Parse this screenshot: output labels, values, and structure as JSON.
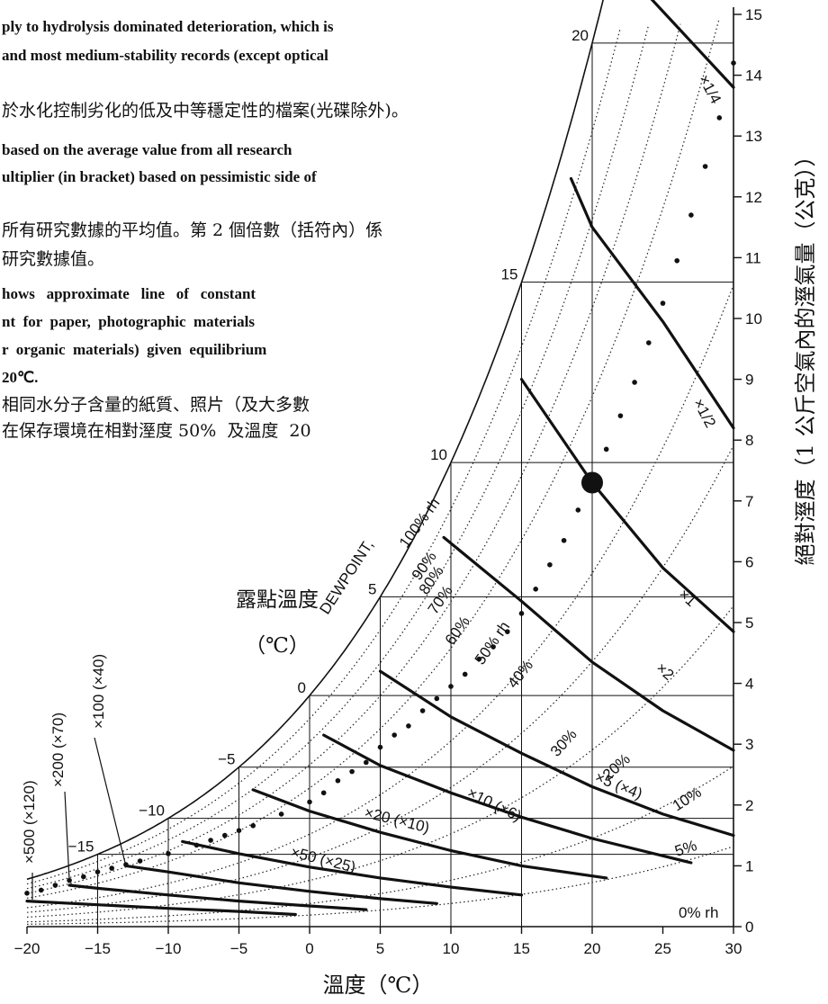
{
  "text_block": {
    "lines": [
      "ply to hydrolysis dominated deterioration, which is",
      " and most medium-stability records (except optical",
      "於水化控制劣化的低及中等穩定性的檔案(光碟除外)。",
      "based on the average value from all research",
      "ultiplier (in bracket) based on pessimistic side of",
      "所有研究數據的平均值。第 2 個倍數（括符內）係",
      "研究數據值。",
      "hows   approximate   line   of   constant",
      "nt  for  paper,  photographic  materials",
      "r  organic  materials)  given  equilibrium",
      "20℃.",
      "相同水分子含量的紙質、照片（及大多數",
      "在保存環境在相對溼度 50%  及溫度  20"
    ]
  },
  "chart_data": {
    "type": "line",
    "title": "",
    "xlabel": "溫度（℃）",
    "ylabel": "絕對溼度（1 公斤空氣內的溼氣量（公克））",
    "dewpoint_label": "DEWPOINT,",
    "dewpoint_cn_label": "露點溫度",
    "dewpoint_cn_unit": "（℃）",
    "xlim": [
      -20,
      30
    ],
    "ylim": [
      0,
      15
    ],
    "x_ticks": [
      "−20",
      "−15",
      "−10",
      "−5",
      "0",
      "5",
      "10",
      "15",
      "20",
      "25",
      "30"
    ],
    "y_ticks": [
      "0",
      "1",
      "2",
      "3",
      "4",
      "5",
      "6",
      "7",
      "8",
      "9",
      "10",
      "11",
      "12",
      "13",
      "14",
      "15"
    ],
    "dewpoint_ticks": [
      "20",
      "15",
      "10",
      "5",
      "0",
      "−5",
      "−10",
      "−15"
    ],
    "dewpoint_values": [
      20,
      15,
      10,
      5,
      0,
      -5,
      -10,
      -15
    ],
    "rh_labels": [
      {
        "text": "100% rh",
        "rh": 100
      },
      {
        "text": "90%",
        "rh": 90
      },
      {
        "text": "80%",
        "rh": 80
      },
      {
        "text": "70%",
        "rh": 70
      },
      {
        "text": "60%",
        "rh": 60
      },
      {
        "text": "50% rh",
        "rh": 50
      },
      {
        "text": "40%",
        "rh": 40
      },
      {
        "text": "30%",
        "rh": 30
      },
      {
        "text": "20%",
        "rh": 20
      },
      {
        "text": "10%",
        "rh": 10
      },
      {
        "text": "5%",
        "rh": 5
      },
      {
        "text": "0% rh",
        "rh": 0
      }
    ],
    "rh_curves": [
      90,
      80,
      70,
      60,
      40,
      30,
      20,
      10,
      5
    ],
    "reference_point": {
      "x": 20,
      "y": 7.3
    },
    "dotted_points": [
      {
        "x": -20,
        "y": 0.55
      },
      {
        "x": -19,
        "y": 0.6
      },
      {
        "x": -18,
        "y": 0.68
      },
      {
        "x": -17,
        "y": 0.76
      },
      {
        "x": -16,
        "y": 0.82
      },
      {
        "x": -15,
        "y": 0.9
      },
      {
        "x": -14,
        "y": 0.96
      },
      {
        "x": -13,
        "y": 1.02
      },
      {
        "x": -12,
        "y": 1.08
      },
      {
        "x": -10,
        "y": 1.2
      },
      {
        "x": -8,
        "y": 1.34
      },
      {
        "x": -7,
        "y": 1.42
      },
      {
        "x": -6,
        "y": 1.5
      },
      {
        "x": -5,
        "y": 1.58
      },
      {
        "x": -4,
        "y": 1.66
      },
      {
        "x": -2,
        "y": 1.85
      },
      {
        "x": 0,
        "y": 2.05
      },
      {
        "x": 1,
        "y": 2.2
      },
      {
        "x": 2,
        "y": 2.4
      },
      {
        "x": 3,
        "y": 2.55
      },
      {
        "x": 4,
        "y": 2.7
      },
      {
        "x": 5,
        "y": 2.95
      },
      {
        "x": 6,
        "y": 3.15
      },
      {
        "x": 7,
        "y": 3.3
      },
      {
        "x": 8,
        "y": 3.55
      },
      {
        "x": 9,
        "y": 3.75
      },
      {
        "x": 10,
        "y": 3.95
      },
      {
        "x": 11,
        "y": 4.15
      },
      {
        "x": 12,
        "y": 4.4
      },
      {
        "x": 13,
        "y": 4.6
      },
      {
        "x": 14,
        "y": 4.85
      },
      {
        "x": 15,
        "y": 5.15
      },
      {
        "x": 16,
        "y": 5.55
      },
      {
        "x": 17,
        "y": 5.95
      },
      {
        "x": 18,
        "y": 6.35
      },
      {
        "x": 19,
        "y": 6.85
      },
      {
        "x": 20,
        "y": 7.35
      },
      {
        "x": 21,
        "y": 7.85
      },
      {
        "x": 22,
        "y": 8.4
      },
      {
        "x": 23,
        "y": 8.95
      },
      {
        "x": 24,
        "y": 9.6
      },
      {
        "x": 25,
        "y": 10.25
      },
      {
        "x": 26,
        "y": 10.95
      },
      {
        "x": 27,
        "y": 11.7
      },
      {
        "x": 28,
        "y": 12.5
      },
      {
        "x": 29,
        "y": 13.3
      },
      {
        "x": 30,
        "y": 14.2
      }
    ],
    "series": [
      {
        "name": "×1/4",
        "label": "×1/4",
        "x": [
          24,
          30
        ],
        "y": [
          15.3,
          13.8
        ]
      },
      {
        "name": "×1/2",
        "label": "×1/2",
        "x": [
          18.5,
          20,
          25,
          30
        ],
        "y": [
          12.3,
          11.5,
          9.95,
          8.2
        ]
      },
      {
        "name": "×1",
        "label": "×1",
        "x": [
          15,
          20,
          25,
          30
        ],
        "y": [
          9.0,
          7.3,
          5.9,
          4.85
        ]
      },
      {
        "name": "×2",
        "label": "×2",
        "x": [
          9.5,
          15,
          20,
          25,
          30
        ],
        "y": [
          6.4,
          5.35,
          4.35,
          3.55,
          2.9
        ]
      },
      {
        "name": "×5 (×4)",
        "label": "×5 (×4)",
        "x": [
          5,
          10,
          15,
          20,
          25,
          30
        ],
        "y": [
          4.2,
          3.45,
          2.85,
          2.3,
          1.85,
          1.5
        ]
      },
      {
        "name": "×10 (×6)",
        "label": "×10 (×6)",
        "x": [
          1,
          5,
          10,
          15,
          20,
          27
        ],
        "y": [
          3.15,
          2.65,
          2.2,
          1.8,
          1.45,
          1.05
        ]
      },
      {
        "name": "×20 (×10)",
        "label": "×20 (×10)",
        "x": [
          -4,
          0,
          5,
          10,
          15,
          21
        ],
        "y": [
          2.25,
          1.9,
          1.55,
          1.25,
          1.0,
          0.8
        ]
      },
      {
        "name": "×50 (×25)",
        "label": "×50 (×25)",
        "x": [
          -9,
          -5,
          0,
          5,
          10,
          15
        ],
        "y": [
          1.4,
          1.2,
          0.98,
          0.8,
          0.65,
          0.52
        ]
      },
      {
        "name": "×100 (×40)",
        "label": "×100 (×40)",
        "x": [
          -13,
          -10,
          -5,
          0,
          5,
          9
        ],
        "y": [
          1.0,
          0.9,
          0.72,
          0.58,
          0.46,
          0.38
        ]
      },
      {
        "name": "×200 (×70)",
        "label": "×200 (×70)",
        "x": [
          -17,
          -15,
          -10,
          -5,
          0,
          4
        ],
        "y": [
          0.68,
          0.63,
          0.52,
          0.42,
          0.34,
          0.28
        ]
      },
      {
        "name": "×500 (×120)",
        "label": "×500 (×120)",
        "x": [
          -20,
          -15,
          -10,
          -5,
          -1
        ],
        "y": [
          0.42,
          0.36,
          0.3,
          0.25,
          0.2
        ]
      }
    ]
  }
}
